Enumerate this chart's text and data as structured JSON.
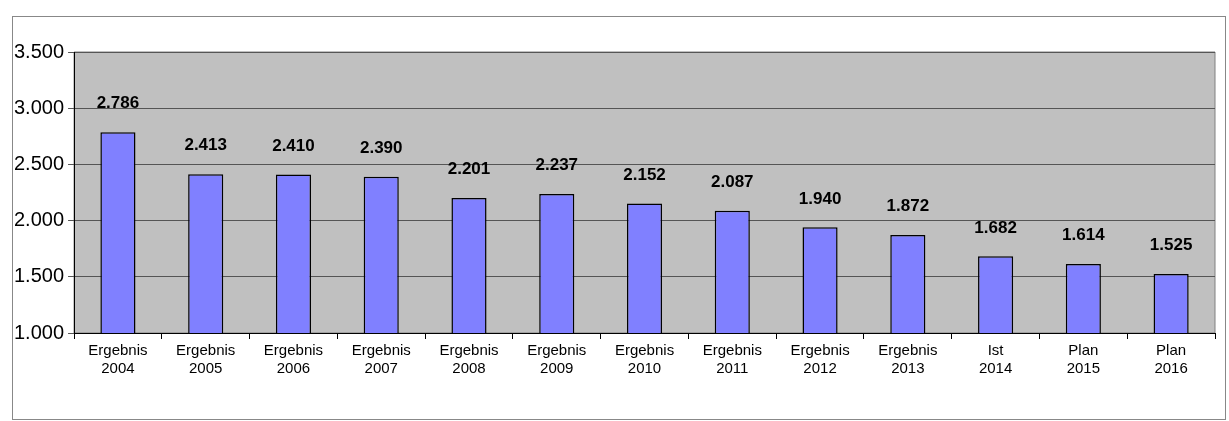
{
  "chart_data": {
    "type": "bar",
    "categories": [
      "Ergebnis 2004",
      "Ergebnis 2005",
      "Ergebnis 2006",
      "Ergebnis 2007",
      "Ergebnis 2008",
      "Ergebnis 2009",
      "Ergebnis 2010",
      "Ergebnis 2011",
      "Ergebnis 2012",
      "Ergebnis 2013",
      "Ist 2014",
      "Plan 2015",
      "Plan 2016"
    ],
    "values": [
      2786,
      2413,
      2410,
      2390,
      2201,
      2237,
      2152,
      2087,
      1940,
      1872,
      1682,
      1614,
      1525
    ],
    "color": "#8080ff",
    "ylim": [
      1000,
      3500
    ],
    "yticks": [
      {
        "value": 1000,
        "label": "1.000"
      },
      {
        "value": 1500,
        "label": "1.500"
      },
      {
        "value": 2000,
        "label": "2.000"
      },
      {
        "value": 2500,
        "label": "2.500"
      },
      {
        "value": 3000,
        "label": "3.000"
      },
      {
        "value": 3500,
        "label": "3.500"
      }
    ],
    "value_labels": [
      "2.786",
      "2.413",
      "2.410",
      "2.390",
      "2.201",
      "2.237",
      "2.152",
      "2.087",
      "1.940",
      "1.872",
      "1.682",
      "1.614",
      "1.525"
    ],
    "grid": "y"
  }
}
